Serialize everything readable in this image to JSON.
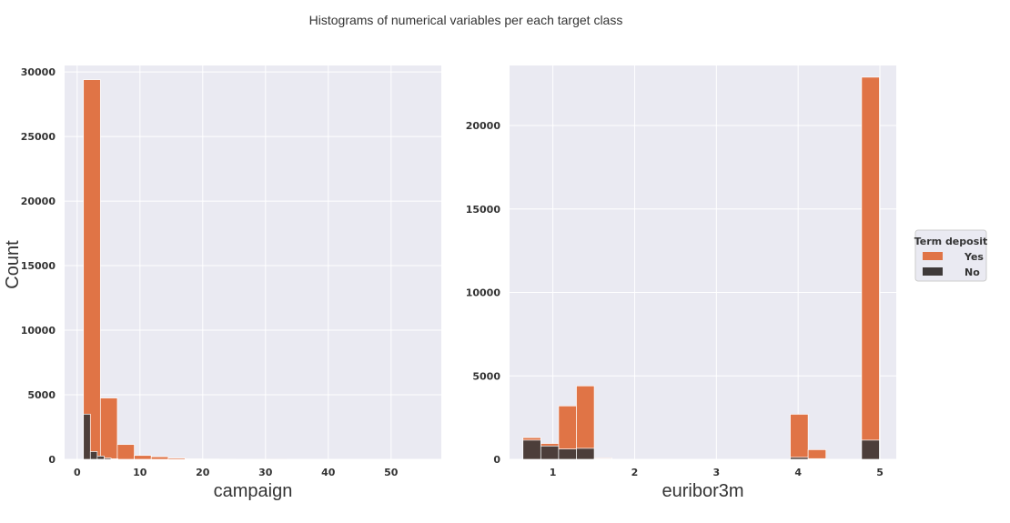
{
  "figure": {
    "title": "Histograms of numerical variables per each target class",
    "ylabel": "Count"
  },
  "legend": {
    "title": "Term deposit",
    "entries": [
      {
        "label": "Yes",
        "color": "#e07446"
      },
      {
        "label": "No",
        "color": "#3f3a3a"
      }
    ]
  },
  "chart_data": [
    {
      "type": "bar",
      "subtype": "histogram",
      "xlabel": "campaign",
      "ylabel": "Count",
      "xlim": [
        -2,
        58
      ],
      "ylim": [
        0,
        30500
      ],
      "xticks": [
        0,
        10,
        20,
        30,
        40,
        50
      ],
      "yticks": [
        0,
        5000,
        10000,
        15000,
        20000,
        25000,
        30000
      ],
      "grid": true,
      "series": [
        {
          "name": "Yes",
          "color": "#e07446",
          "bins": [
            {
              "x0": 1,
              "x1": 3.7,
              "value": 29400
            },
            {
              "x0": 3.7,
              "x1": 6.4,
              "value": 4750
            },
            {
              "x0": 6.4,
              "x1": 9.1,
              "value": 1150
            },
            {
              "x0": 9.1,
              "x1": 11.8,
              "value": 300
            },
            {
              "x0": 11.8,
              "x1": 14.5,
              "value": 200
            },
            {
              "x0": 14.5,
              "x1": 17.2,
              "value": 100
            },
            {
              "x0": 17.2,
              "x1": 19.9,
              "value": 40
            },
            {
              "x0": 19.9,
              "x1": 22.6,
              "value": 25
            },
            {
              "x0": 22.6,
              "x1": 25.3,
              "value": 15
            },
            {
              "x0": 25.3,
              "x1": 28,
              "value": 10
            },
            {
              "x0": 28,
              "x1": 30.7,
              "value": 8
            },
            {
              "x0": 30.7,
              "x1": 33.4,
              "value": 6
            }
          ]
        },
        {
          "name": "No",
          "color": "#3f3a3a",
          "bins": [
            {
              "x0": 1,
              "x1": 2.1,
              "value": 3500
            },
            {
              "x0": 2.1,
              "x1": 3.2,
              "value": 600
            },
            {
              "x0": 3.2,
              "x1": 4.3,
              "value": 250
            },
            {
              "x0": 4.3,
              "x1": 5.4,
              "value": 100
            },
            {
              "x0": 5.4,
              "x1": 6.5,
              "value": 40
            }
          ]
        }
      ]
    },
    {
      "type": "bar",
      "subtype": "histogram",
      "xlabel": "euribor3m",
      "xlim": [
        0.47,
        5.2
      ],
      "ylim": [
        0,
        23600
      ],
      "xticks": [
        1,
        2,
        3,
        4,
        5
      ],
      "yticks": [
        0,
        5000,
        10000,
        15000,
        20000
      ],
      "grid": true,
      "series": [
        {
          "name": "Yes",
          "color": "#e07446",
          "bins": [
            {
              "x0": 0.634,
              "x1": 0.852,
              "value": 1300
            },
            {
              "x0": 0.852,
              "x1": 1.07,
              "value": 950
            },
            {
              "x0": 1.07,
              "x1": 1.288,
              "value": 3200
            },
            {
              "x0": 1.288,
              "x1": 1.506,
              "value": 4400
            },
            {
              "x0": 1.506,
              "x1": 1.724,
              "value": 80
            },
            {
              "x0": 3.904,
              "x1": 4.122,
              "value": 2700
            },
            {
              "x0": 4.122,
              "x1": 4.34,
              "value": 580
            },
            {
              "x0": 4.776,
              "x1": 4.994,
              "value": 22900
            }
          ]
        },
        {
          "name": "No",
          "color": "#3f3a3a",
          "bins": [
            {
              "x0": 0.634,
              "x1": 0.852,
              "value": 1150
            },
            {
              "x0": 0.852,
              "x1": 1.07,
              "value": 800
            },
            {
              "x0": 1.07,
              "x1": 1.288,
              "value": 620
            },
            {
              "x0": 1.288,
              "x1": 1.506,
              "value": 660
            },
            {
              "x0": 1.506,
              "x1": 1.724,
              "value": 40
            },
            {
              "x0": 3.904,
              "x1": 4.122,
              "value": 120
            },
            {
              "x0": 4.122,
              "x1": 4.34,
              "value": 40
            },
            {
              "x0": 4.776,
              "x1": 4.994,
              "value": 1150
            }
          ]
        }
      ]
    }
  ]
}
